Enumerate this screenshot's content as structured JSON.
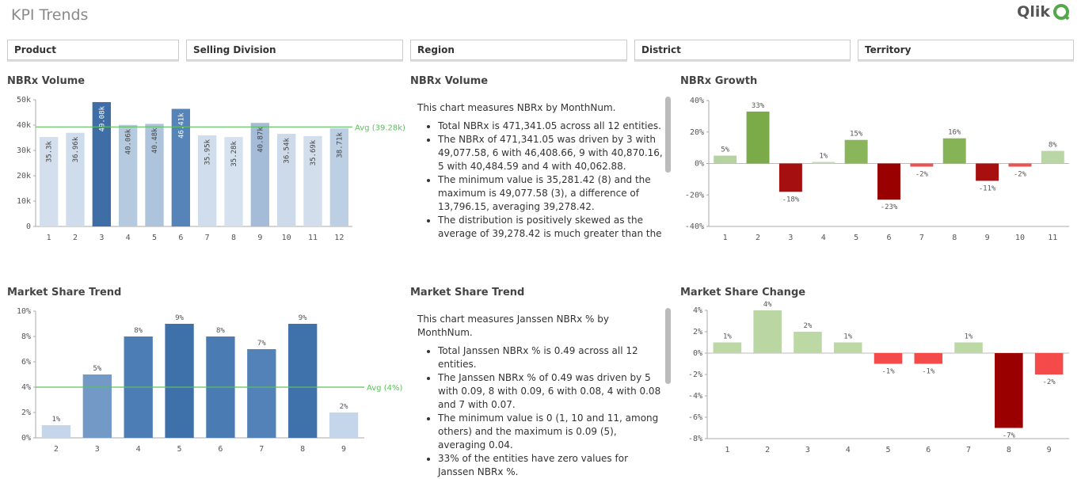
{
  "header": {
    "title": "KPI Trends",
    "logo": "Qlik"
  },
  "filters": [
    "Product",
    "Selling Division",
    "Region",
    "District",
    "Territory"
  ],
  "text_panels": [
    {
      "title": "NBRx Volume",
      "intro": "This chart measures NBRx by MonthNum.",
      "bullets": [
        "Total NBRx is 471,341.05 across all 12 entities.",
        "The NBRx of 471,341.05 was driven by 3 with 49,077.58, 6 with 46,408.66, 9 with 40,870.16, 5 with 40,484.59 and 4 with 40,062.88.",
        "The minimum value is 35,281.42 (8) and the maximum is 49,077.58 (3), a difference of 13,796.15, averaging 39,278.42.",
        "The distribution is positively skewed as the average of 39,278.42 is much greater than the"
      ]
    },
    {
      "title": "Market Share Trend",
      "intro": "This chart measures Janssen NBRx % by MonthNum.",
      "bullets": [
        "Total Janssen NBRx % is 0.49 across all 12 entities.",
        "The Janssen NBRx % of 0.49 was driven by 5 with 0.09, 8 with 0.09, 6 with 0.08, 4 with 0.08 and 7 with 0.07.",
        "The minimum value is 0 (1, 10 and 11, among others) and the maximum is 0.09 (5), averaging 0.04.",
        "33% of the entities have zero values for Janssen NBRx %."
      ]
    }
  ],
  "chart_data": [
    {
      "type": "bar",
      "title": "NBRx Volume",
      "categories": [
        "1",
        "2",
        "3",
        "4",
        "5",
        "6",
        "7",
        "8",
        "9",
        "10",
        "11",
        "12"
      ],
      "values": [
        35300,
        36960,
        49077.58,
        40062.88,
        40484.59,
        46408.66,
        35950,
        35281.42,
        40870.16,
        36540,
        35690,
        38710
      ],
      "value_labels": [
        "35.3k",
        "36.96k",
        "49.08k",
        "40.06k",
        "40.48k",
        "46.41k",
        "35.95k",
        "35.28k",
        "40.87k",
        "36.54k",
        "35.69k",
        "38.71k"
      ],
      "colors": [
        "#d3dfed",
        "#cfdcec",
        "#3e6ea5",
        "#b5c9df",
        "#aec4dc",
        "#5684b8",
        "#d0ddec",
        "#d5e1ee",
        "#a4bcd8",
        "#ccdaea",
        "#d2deec",
        "#bccfe3"
      ],
      "ylim": [
        0,
        50000
      ],
      "yticks": [
        0,
        {
          "value": 10000,
          "label": "10k"
        },
        {
          "value": 20000,
          "label": "20k"
        },
        {
          "value": 30000,
          "label": "30k"
        },
        {
          "value": 40000,
          "label": "40k"
        },
        {
          "value": 50000,
          "label": "50k"
        }
      ],
      "reference_line": {
        "value": 39278.42,
        "label": "Avg (39.28k)",
        "color": "#5cc05c"
      }
    },
    {
      "type": "bar",
      "title": "NBRx Growth",
      "categories": [
        "1",
        "2",
        "3",
        "4",
        "5",
        "6",
        "7",
        "8",
        "9",
        "10",
        "11"
      ],
      "values": [
        5,
        33,
        -18,
        1,
        15,
        -23,
        -2,
        16,
        -11,
        -2,
        8
      ],
      "value_labels": [
        "5%",
        "33%",
        "-18%",
        "1%",
        "15%",
        "-23%",
        "-2%",
        "16%",
        "-11%",
        "-2%",
        "8%"
      ],
      "colors": [
        "#b5d3a0",
        "#7aab48",
        "#a50f0f",
        "#c5ddb3",
        "#8ab55a",
        "#990000",
        "#f05050",
        "#86b356",
        "#a81010",
        "#f05050",
        "#b9d6a4"
      ],
      "ylim": [
        -40,
        40
      ],
      "yticks": [
        {
          "value": -40,
          "label": "-40%"
        },
        {
          "value": -20,
          "label": "-20%"
        },
        {
          "value": 0,
          "label": "0%"
        },
        {
          "value": 20,
          "label": "20%"
        },
        {
          "value": 40,
          "label": "40%"
        }
      ]
    },
    {
      "type": "bar",
      "title": "Market Share Trend",
      "categories": [
        "2",
        "3",
        "4",
        "5",
        "6",
        "7",
        "8",
        "9"
      ],
      "values": [
        1,
        5,
        8,
        9,
        8,
        7,
        9,
        2
      ],
      "value_labels": [
        "1%",
        "5%",
        "8%",
        "9%",
        "8%",
        "7%",
        "9%",
        "2%"
      ],
      "colors": [
        "#c5d6ea",
        "#7399c6",
        "#4c7db4",
        "#3e70aa",
        "#4a7bb3",
        "#5282b8",
        "#3f71ab",
        "#c5d6ea"
      ],
      "ylim": [
        0,
        10
      ],
      "yticks": [
        {
          "value": 0,
          "label": "0%"
        },
        {
          "value": 2,
          "label": "2%"
        },
        {
          "value": 4,
          "label": "4%"
        },
        {
          "value": 6,
          "label": "6%"
        },
        {
          "value": 8,
          "label": "8%"
        },
        {
          "value": 10,
          "label": "10%"
        }
      ],
      "reference_line": {
        "value": 4,
        "label": "Avg (4%)",
        "color": "#5cc05c"
      }
    },
    {
      "type": "bar",
      "title": "Market Share Change",
      "categories": [
        "1",
        "2",
        "3",
        "4",
        "5",
        "6",
        "7",
        "8",
        "9"
      ],
      "values": [
        1,
        4,
        2,
        1,
        -1,
        -1,
        1,
        -7,
        -2
      ],
      "value_labels": [
        "1%",
        "4%",
        "2%",
        "1%",
        "-1%",
        "-1%",
        "1%",
        "-7%",
        "-2%"
      ],
      "colors": [
        "#bcd9a5",
        "#b9d6a3",
        "#bcd9a5",
        "#bcd9a5",
        "#f44a4a",
        "#f44a4a",
        "#bcd9a5",
        "#9a0000",
        "#f44a4a"
      ],
      "ylim": [
        -8,
        4
      ],
      "yticks": [
        {
          "value": -8,
          "label": "-8%"
        },
        {
          "value": -6,
          "label": "-6%"
        },
        {
          "value": -4,
          "label": "-4%"
        },
        {
          "value": -2,
          "label": "-2%"
        },
        {
          "value": 0,
          "label": "0%"
        },
        {
          "value": 2,
          "label": "2%"
        },
        {
          "value": 4,
          "label": "4%"
        }
      ]
    }
  ]
}
